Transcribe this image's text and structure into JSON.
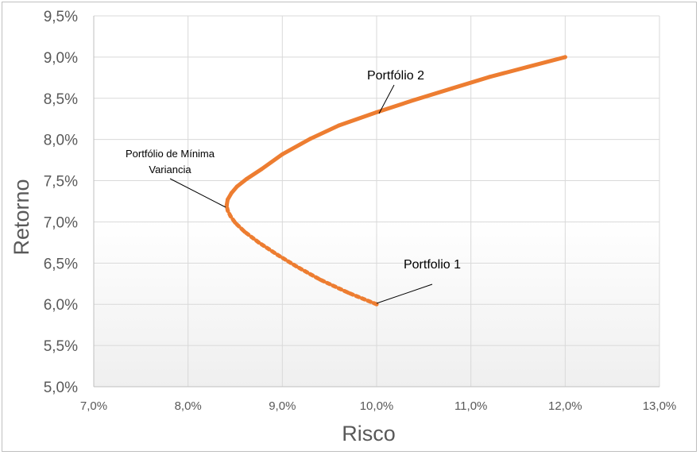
{
  "chart_data": {
    "type": "scatter",
    "xlabel": "Risco",
    "ylabel": "Retorno",
    "xlim": [
      0.07,
      0.13
    ],
    "ylim": [
      0.05,
      0.095
    ],
    "x_ticks": [
      "7,0%",
      "8,0%",
      "9,0%",
      "10,0%",
      "11,0%",
      "12,0%",
      "13,0%"
    ],
    "y_ticks": [
      "5,0%",
      "5,5%",
      "6,0%",
      "6,5%",
      "7,0%",
      "7,5%",
      "8,0%",
      "8,5%",
      "9,0%",
      "9,5%"
    ],
    "grid": true,
    "legend": "none",
    "colors": {
      "series": "#ed7d31",
      "grid": "#d9d9d9",
      "tick_text": "#595959"
    },
    "series": [
      {
        "style": "dashed",
        "x": [
          0.1,
          0.097,
          0.094,
          0.0915,
          0.0895,
          0.0875,
          0.086,
          0.085,
          0.0845,
          0.0842,
          0.0841
        ],
        "y": [
          0.06,
          0.0614,
          0.063,
          0.0646,
          0.066,
          0.0675,
          0.0688,
          0.0699,
          0.0707,
          0.0714,
          0.072
        ]
      },
      {
        "style": "solid",
        "x": [
          0.0841,
          0.0842,
          0.0846,
          0.0852,
          0.0862,
          0.0878,
          0.09,
          0.093,
          0.096,
          0.1,
          0.104,
          0.108,
          0.112,
          0.116,
          0.12
        ],
        "y": [
          0.072,
          0.0727,
          0.0735,
          0.0743,
          0.0752,
          0.0764,
          0.0782,
          0.0801,
          0.0817,
          0.0833,
          0.0848,
          0.0862,
          0.0876,
          0.0888,
          0.09
        ]
      }
    ],
    "annotations": [
      {
        "lines": [
          "Portfólio 2"
        ],
        "x": 0.1,
        "y": 0.0833
      },
      {
        "lines": [
          "Portfólio de Mínima",
          "Variancia"
        ],
        "x": 0.0841,
        "y": 0.0718
      },
      {
        "lines": [
          "Portfolio 1"
        ],
        "x": 0.1,
        "y": 0.06
      }
    ]
  }
}
